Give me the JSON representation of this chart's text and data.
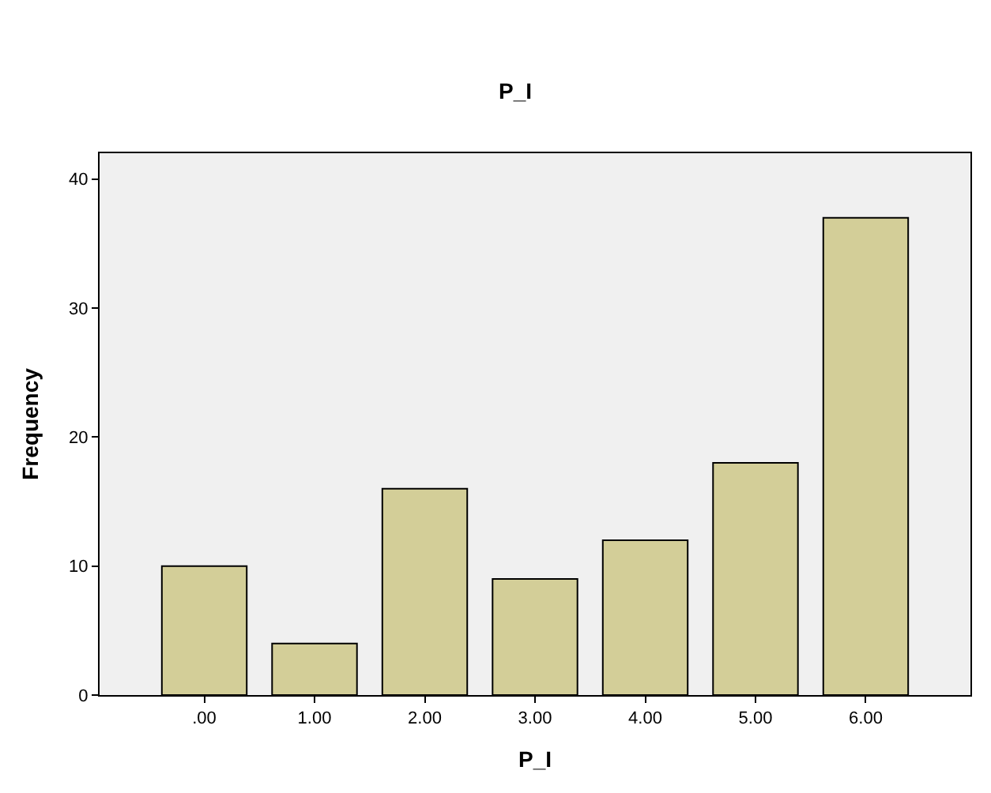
{
  "chart_data": {
    "type": "bar",
    "title": "P_I",
    "xlabel": "P_I",
    "ylabel": "Frequency",
    "categories": [
      ".00",
      "1.00",
      "2.00",
      "3.00",
      "4.00",
      "5.00",
      "6.00"
    ],
    "values": [
      10,
      4,
      16,
      9,
      12,
      18,
      37
    ],
    "color": "#d3ce98",
    "ylim": [
      0,
      42
    ],
    "yticks": [
      0,
      10,
      20,
      30,
      40
    ],
    "grid": false
  }
}
